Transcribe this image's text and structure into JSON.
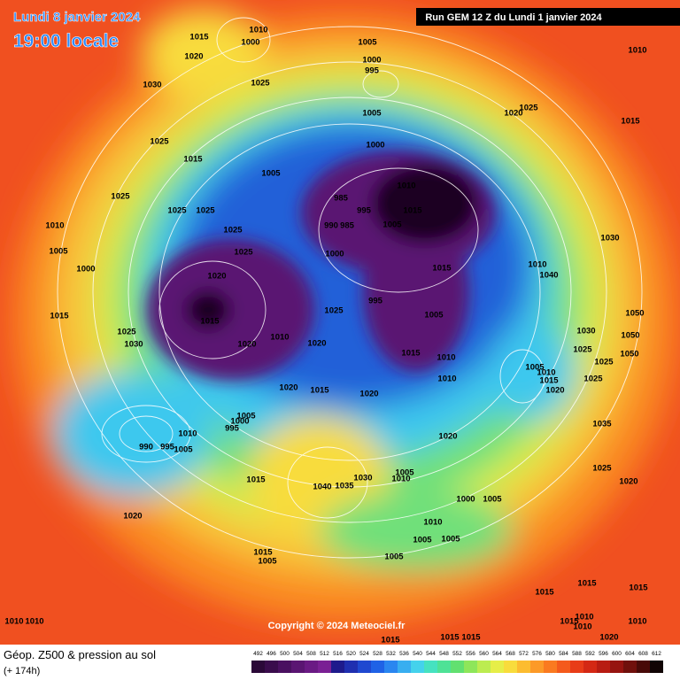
{
  "header": {
    "date": "Lundi 8 janvier 2024",
    "time": "19:00 locale",
    "run": "Run GEM 12 Z du Lundi 1 janvier 2024"
  },
  "map": {
    "copyright": "Copyright © 2024 Meteociel.fr",
    "isobar_labels": [
      "1015",
      "1010",
      "1000",
      "1020",
      "1030",
      "1025",
      "1005",
      "1000",
      "995",
      "1005",
      "1025",
      "1015",
      "1000",
      "1005",
      "1025",
      "1025",
      "1025",
      "1010",
      "1005",
      "1000",
      "1025",
      "1025",
      "985",
      "995",
      "990",
      "985",
      "1005",
      "1010",
      "1015",
      "1000",
      "1015",
      "1020",
      "1015",
      "1025",
      "995",
      "1005",
      "1015",
      "1025",
      "1030",
      "1020",
      "1010",
      "1020",
      "1015",
      "1010",
      "1010",
      "1020",
      "1015",
      "1020",
      "1005",
      "1000",
      "995",
      "1010",
      "1020",
      "990",
      "995",
      "1005",
      "1015",
      "1040",
      "1030",
      "1035",
      "1010",
      "1005",
      "1000",
      "1005",
      "1020",
      "1010",
      "1005",
      "1005",
      "1015",
      "1005",
      "1005",
      "1010",
      "1010",
      "1015",
      "1015",
      "1015",
      "1010",
      "1020",
      "1025",
      "1015",
      "1030",
      "1010",
      "1040",
      "1030",
      "1025",
      "1025",
      "1025",
      "1005",
      "1010",
      "1015",
      "1020",
      "1050",
      "1050",
      "1050",
      "1035",
      "1025",
      "1020",
      "1015",
      "1015",
      "1015",
      "1010",
      "1010",
      "1010",
      "1020",
      "1015"
    ]
  },
  "legend": {
    "title": "Géop. Z500 & pression au sol",
    "lead": "(+ 174h)",
    "levels": [
      492,
      496,
      500,
      504,
      508,
      512,
      516,
      520,
      524,
      528,
      532,
      536,
      540,
      544,
      548,
      552,
      556,
      560,
      564,
      568,
      572,
      576,
      580,
      584,
      588,
      592,
      596,
      600,
      604,
      608,
      612
    ],
    "colors": [
      "#2b0838",
      "#3a0c4c",
      "#4a1060",
      "#5a1572",
      "#6a1a84",
      "#7a2094",
      "#1e1a8c",
      "#1f2fb0",
      "#1f48d0",
      "#1f62e6",
      "#2a86f0",
      "#38aef0",
      "#44d2ec",
      "#46e2c0",
      "#4ee296",
      "#62e070",
      "#8ee65a",
      "#bcec50",
      "#e6ee48",
      "#f8dc3c",
      "#fcbc30",
      "#fc9a28",
      "#fa7a20",
      "#f45a1c",
      "#e83c18",
      "#d42814",
      "#b81c12",
      "#961410",
      "#70100c",
      "#480a08",
      "#100404"
    ]
  }
}
